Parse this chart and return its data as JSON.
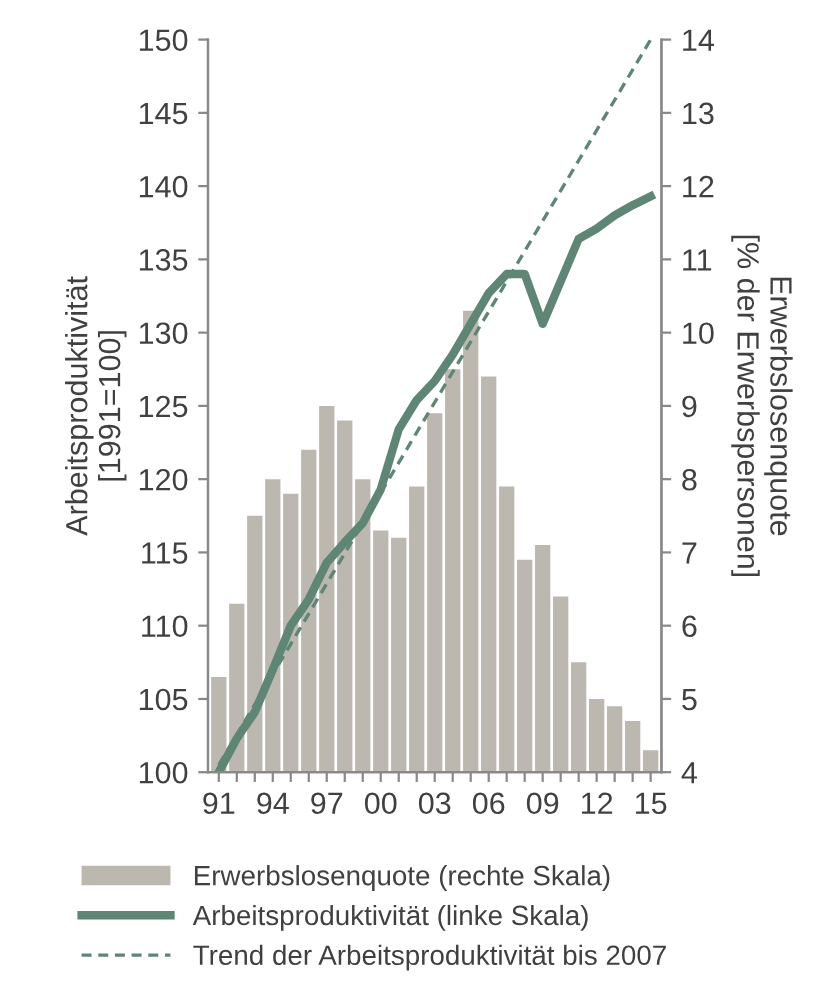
{
  "chart_data": {
    "type": "bar",
    "categories": [
      "91",
      null,
      null,
      "94",
      null,
      null,
      "97",
      null,
      null,
      "00",
      null,
      null,
      "03",
      null,
      null,
      "06",
      null,
      null,
      "09",
      null,
      null,
      "12",
      null,
      null,
      "15"
    ],
    "ylabel": "Arbeitsproduktivität\n[1991=100]",
    "y2label": "Erwerbslosenquote\n[% der Erwerbspersonen]",
    "ylim": [
      100,
      150
    ],
    "yticks": [
      100,
      105,
      110,
      115,
      120,
      125,
      130,
      135,
      140,
      145,
      150
    ],
    "y2lim": [
      4,
      14
    ],
    "y2ticks": [
      4,
      5,
      6,
      7,
      8,
      9,
      10,
      11,
      12,
      13,
      14
    ],
    "legend": "bottom",
    "grid": false,
    "series": [
      {
        "name": "Erwerbslosenquote (rechte Skala)",
        "axis": "y2",
        "color": "#bcb8b0",
        "values": [
          5.3,
          6.3,
          7.5,
          8.0,
          7.8,
          8.4,
          9.0,
          8.8,
          8.0,
          7.3,
          7.2,
          7.9,
          8.9,
          9.5,
          10.3,
          9.4,
          7.9,
          6.9,
          7.1,
          6.4,
          5.5,
          5.0,
          4.9,
          4.7,
          4.3
        ]
      },
      {
        "name": "Arbeitsproduktivität (linke Skala)",
        "type": "line",
        "axis": "y",
        "color": "#5f8575",
        "line_style": "solid",
        "values": [
          100,
          102.3,
          104.1,
          107,
          110,
          111.8,
          114.3,
          115.7,
          117,
          119.3,
          123.4,
          125.4,
          126.7,
          128.5,
          130.6,
          132.7,
          134,
          134,
          130.6,
          133.5,
          136.4,
          137.1,
          138,
          138.7,
          139.3
        ]
      },
      {
        "name": "Trend der Arbeitsproduktivität bis 2007",
        "type": "line",
        "axis": "y",
        "color": "#5f8575",
        "line_style": "dashed",
        "x": [
          "91",
          "15"
        ],
        "values": [
          100.5,
          150
        ]
      }
    ]
  }
}
